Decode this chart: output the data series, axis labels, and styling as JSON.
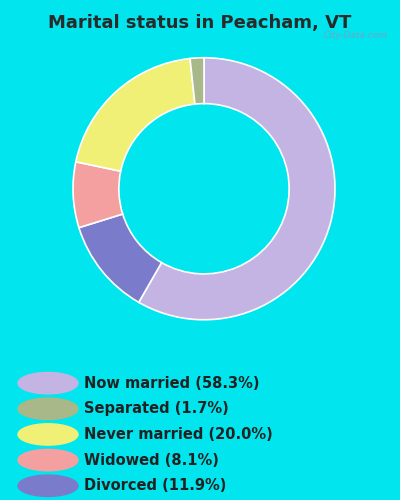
{
  "title": "Marital status in Peacham, VT",
  "slices_ordered": [
    {
      "label": "Now married (58.3%)",
      "value": 58.3,
      "color": "#c4b4e4"
    },
    {
      "label": "Divorced (11.9%)",
      "value": 11.9,
      "color": "#7b7bcc"
    },
    {
      "label": "Widowed (8.1%)",
      "value": 8.1,
      "color": "#f5a0a0"
    },
    {
      "label": "Never married (20.0%)",
      "value": 20.0,
      "color": "#f0f077"
    },
    {
      "label": "Separated (1.7%)",
      "value": 1.7,
      "color": "#a8b888"
    }
  ],
  "legend_order": [
    {
      "label": "Now married (58.3%)",
      "color": "#c4b4e4"
    },
    {
      "label": "Separated (1.7%)",
      "color": "#a8b888"
    },
    {
      "label": "Never married (20.0%)",
      "color": "#f0f077"
    },
    {
      "label": "Widowed (8.1%)",
      "color": "#f5a0a0"
    },
    {
      "label": "Divorced (11.9%)",
      "color": "#7b7bcc"
    }
  ],
  "bg_cyan": "#00e5ee",
  "chart_bg": "#d0ead8",
  "title_color": "#2a2a2a",
  "title_fontsize": 13,
  "legend_fontsize": 10.5,
  "donut_width": 0.35,
  "start_angle": 90
}
